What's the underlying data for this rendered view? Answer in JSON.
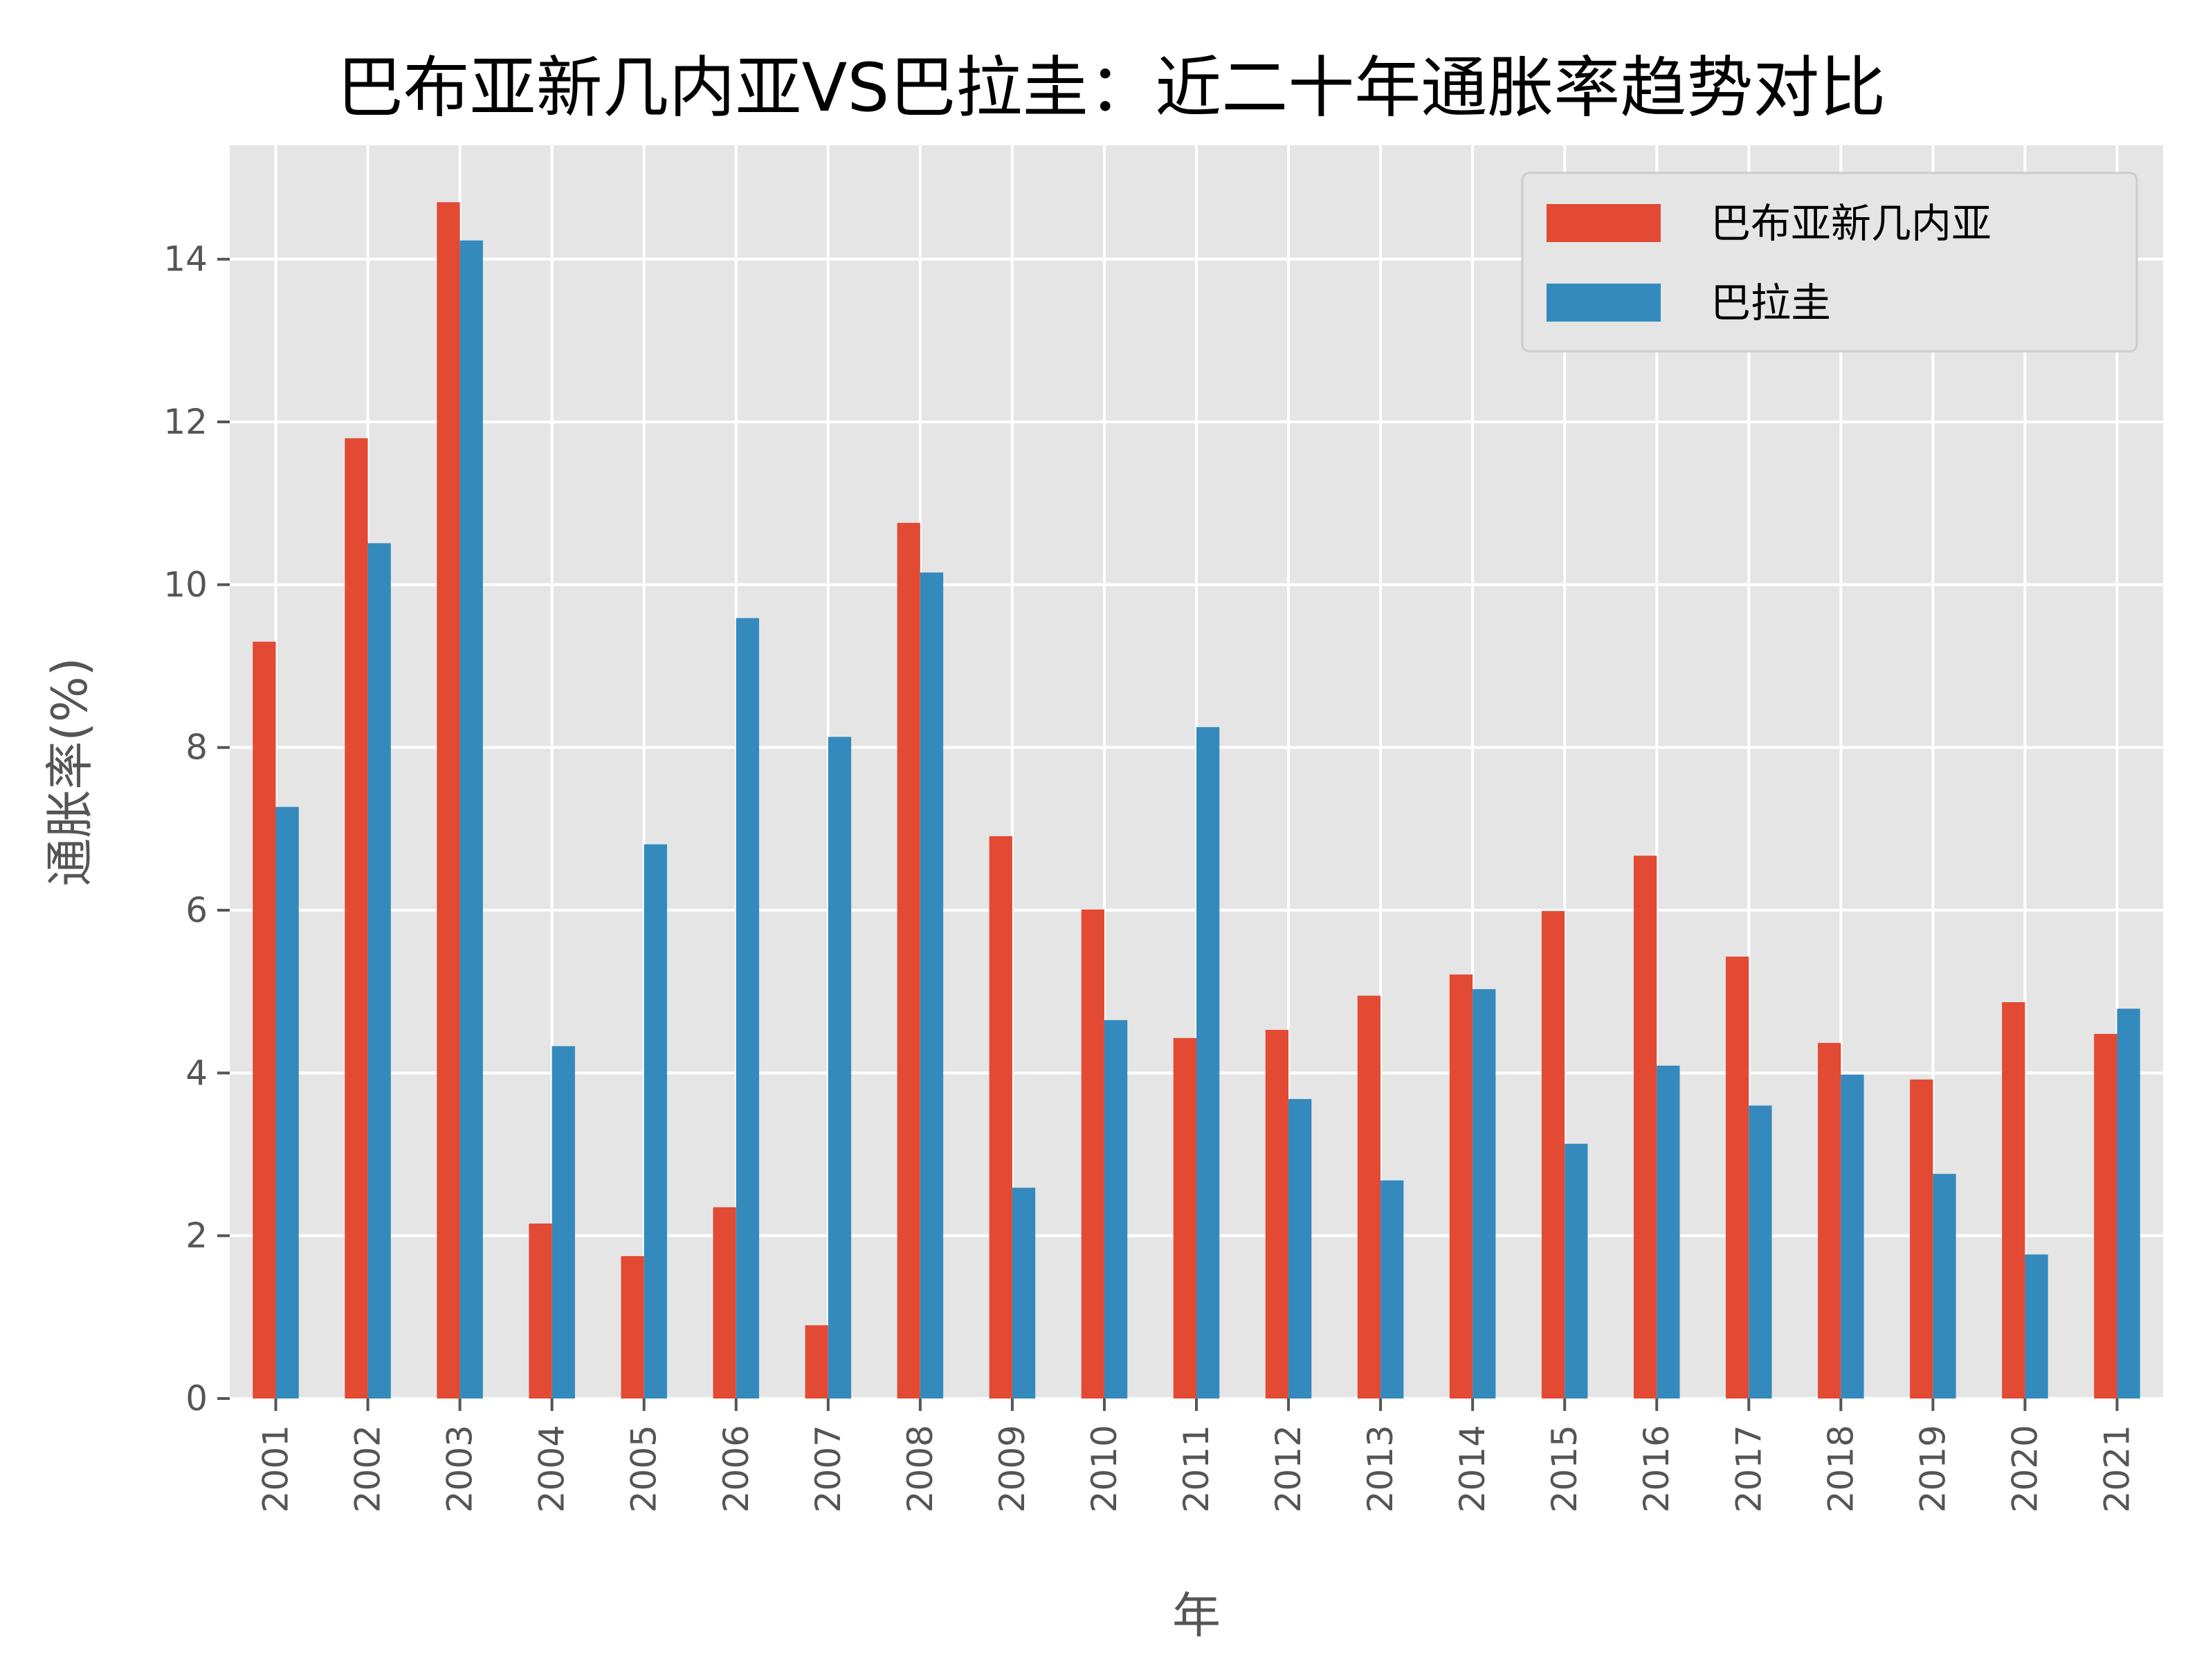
{
  "chart_data": {
    "type": "bar",
    "title": "巴布亚新几内亚VS巴拉圭：近二十年通胀率趋势对比",
    "xlabel": "年",
    "ylabel": "通胀率(%)",
    "categories": [
      "2001",
      "2002",
      "2003",
      "2004",
      "2005",
      "2006",
      "2007",
      "2008",
      "2009",
      "2010",
      "2011",
      "2012",
      "2013",
      "2014",
      "2015",
      "2016",
      "2017",
      "2018",
      "2019",
      "2020",
      "2021"
    ],
    "ylim": [
      0,
      15.4
    ],
    "yticks": [
      0,
      2,
      4,
      6,
      8,
      10,
      12,
      14
    ],
    "grid": true,
    "legend_position": "top-right",
    "series": [
      {
        "name": "巴布亚新几内亚",
        "color": "#E24A33",
        "values": [
          9.3,
          11.8,
          14.7,
          2.15,
          1.75,
          2.35,
          0.9,
          10.76,
          6.91,
          6.01,
          4.43,
          4.53,
          4.95,
          5.21,
          5.99,
          6.67,
          5.43,
          4.37,
          3.92,
          4.87,
          4.48
        ]
      },
      {
        "name": "巴拉圭",
        "color": "#348ABD",
        "values": [
          7.27,
          10.51,
          14.23,
          4.33,
          6.81,
          9.59,
          8.13,
          10.15,
          2.59,
          4.65,
          8.25,
          3.68,
          2.68,
          5.03,
          3.13,
          4.09,
          3.6,
          3.98,
          2.76,
          1.77,
          4.79
        ]
      }
    ]
  }
}
